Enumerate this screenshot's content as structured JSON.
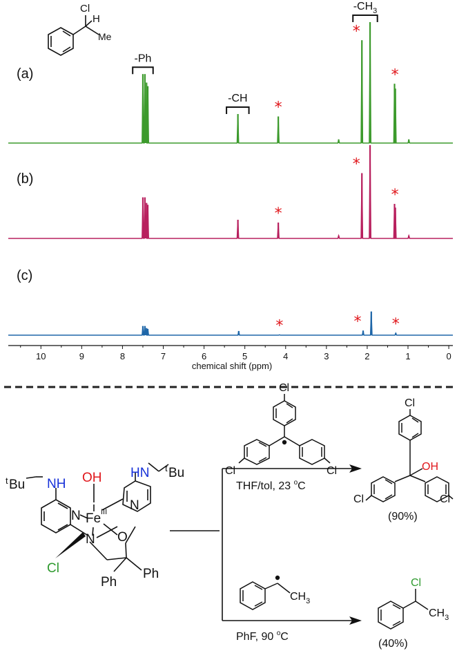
{
  "chart_data": {
    "type": "line",
    "xlabel": "chemical shift (ppm)",
    "xlim": [
      10.8,
      -0.1
    ],
    "x_reversed": true,
    "x_ticks": [
      10,
      9,
      8,
      7,
      6,
      5,
      4,
      3,
      2,
      1,
      0
    ],
    "grid": false,
    "legend": "none",
    "peak_marker": "*",
    "series": [
      {
        "name": "(a)",
        "color": "#3c9a2c",
        "peaks": [
          {
            "x": 7.5,
            "y": 0.57
          },
          {
            "x": 7.45,
            "y": 0.57
          },
          {
            "x": 7.41,
            "y": 0.5
          },
          {
            "x": 7.38,
            "y": 0.47
          },
          {
            "x": 5.17,
            "y": 0.24
          },
          {
            "x": 4.18,
            "y": 0.22
          },
          {
            "x": 2.7,
            "y": 0.03
          },
          {
            "x": 2.13,
            "y": 0.85
          },
          {
            "x": 1.93,
            "y": 1.0
          },
          {
            "x": 1.33,
            "y": 0.49
          },
          {
            "x": 1.31,
            "y": 0.45
          },
          {
            "x": 0.98,
            "y": 0.03
          }
        ],
        "starred_x": [
          4.18,
          2.13,
          1.32
        ],
        "group_labels": [
          {
            "text": "-Ph",
            "from": 7.75,
            "to": 7.25
          },
          {
            "text": "-CH",
            "from": 5.45,
            "to": 4.9
          },
          {
            "text": "-CH3",
            "from": 2.35,
            "to": 1.75
          }
        ]
      },
      {
        "name": "(b)",
        "color": "#b8205e",
        "peaks": [
          {
            "x": 7.5,
            "y": 0.44
          },
          {
            "x": 7.45,
            "y": 0.44
          },
          {
            "x": 7.41,
            "y": 0.38
          },
          {
            "x": 7.38,
            "y": 0.36
          },
          {
            "x": 5.17,
            "y": 0.2
          },
          {
            "x": 4.18,
            "y": 0.17
          },
          {
            "x": 2.7,
            "y": 0.03
          },
          {
            "x": 2.13,
            "y": 0.7
          },
          {
            "x": 1.93,
            "y": 1.0
          },
          {
            "x": 1.33,
            "y": 0.37
          },
          {
            "x": 1.31,
            "y": 0.33
          },
          {
            "x": 0.98,
            "y": 0.03
          }
        ],
        "starred_x": [
          4.18,
          2.13,
          1.32
        ],
        "group_labels": []
      },
      {
        "name": "(c)",
        "color": "#1e66a8",
        "peaks": [
          {
            "x": 7.5,
            "y": 0.22
          },
          {
            "x": 7.45,
            "y": 0.22
          },
          {
            "x": 7.41,
            "y": 0.17
          },
          {
            "x": 7.38,
            "y": 0.15
          },
          {
            "x": 5.15,
            "y": 0.1
          },
          {
            "x": 4.15,
            "y": 0.01
          },
          {
            "x": 2.1,
            "y": 0.11
          },
          {
            "x": 1.9,
            "y": 0.57
          },
          {
            "x": 1.3,
            "y": 0.05
          }
        ],
        "starred_x": [
          4.15,
          2.1,
          1.3
        ],
        "group_labels": []
      }
    ]
  },
  "scheme": {
    "top_product_label": "Cl",
    "top_product_h": "H",
    "top_product_me": "Me",
    "complex_fe": "Fe",
    "complex_fe_ox": "III",
    "complex_oh": "OH",
    "complex_nh_left": "NH",
    "complex_nh_right": "HN",
    "complex_tbu": "Bu",
    "complex_t": "t",
    "complex_n": "N",
    "complex_o": "O",
    "complex_cl": "Cl",
    "complex_ph": "Ph",
    "reagent1_cl": "Cl",
    "condition1": "THF/tol, 23 ",
    "condition1_unit": "C",
    "product1_oh": "OH",
    "product1_cl": "Cl",
    "yield1": "(90%)",
    "reagent2_ch3": "CH",
    "reagent2_sub": "3",
    "condition2": "PhF, 90 ",
    "condition2_unit": "C",
    "product2_cl": "Cl",
    "product2_ch3": "CH",
    "product2_sub": "3",
    "yield2": "(40%)",
    "degree": "o",
    "colors": {
      "cl": "#2e9a2e",
      "oh": "#e0161b",
      "nh": "#1630d8",
      "black": "#111111"
    }
  }
}
